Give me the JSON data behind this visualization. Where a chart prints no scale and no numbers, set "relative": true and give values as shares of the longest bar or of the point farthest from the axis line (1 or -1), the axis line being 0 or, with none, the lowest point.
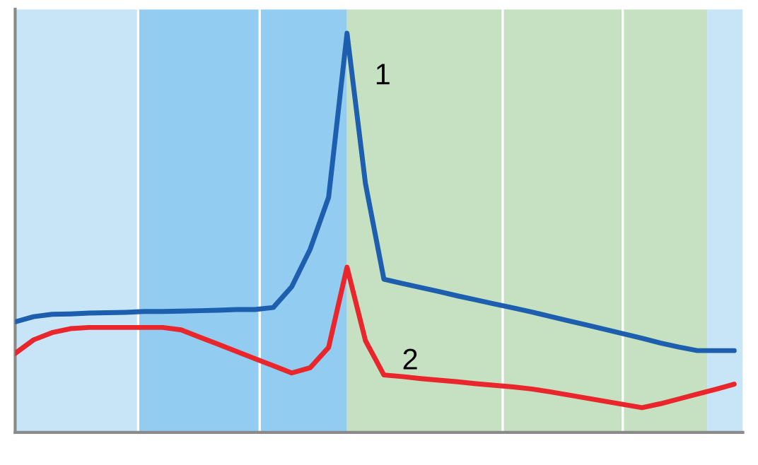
{
  "chart_data": {
    "type": "line",
    "relative": true,
    "categories": [
      null,
      null,
      null,
      null,
      null,
      null,
      null,
      null,
      null,
      null,
      null,
      null,
      null,
      null,
      null,
      null,
      null,
      null,
      null,
      null,
      null,
      null,
      null,
      null,
      null,
      null,
      null,
      null,
      null,
      null,
      null,
      null,
      null,
      null,
      null,
      null,
      null,
      null,
      null,
      null
    ],
    "series": [
      {
        "name": "1",
        "color": "#1d5fae",
        "values": [
          0.277,
          0.29,
          0.296,
          0.297,
          0.299,
          0.3,
          0.301,
          0.303,
          0.303,
          0.304,
          0.305,
          0.306,
          0.308,
          0.308,
          0.313,
          0.365,
          0.459,
          0.589,
          1,
          0.623,
          0.384,
          0.373,
          0.363,
          0.353,
          0.342,
          0.332,
          0.322,
          0.312,
          0.302,
          0.291,
          0.28,
          0.269,
          0.258,
          0.247,
          0.236,
          0.224,
          0.214,
          0.205,
          0.205,
          0.205
        ]
      },
      {
        "name": "2",
        "color": "#e8262c",
        "values": [
          0.198,
          0.232,
          0.25,
          0.26,
          0.263,
          0.263,
          0.263,
          0.263,
          0.263,
          0.257,
          0.239,
          0.221,
          0.203,
          0.185,
          0.167,
          0.149,
          0.162,
          0.213,
          0.414,
          0.23,
          0.144,
          0.14,
          0.135,
          0.131,
          0.127,
          0.122,
          0.118,
          0.114,
          0.109,
          0.102,
          0.094,
          0.086,
          0.078,
          0.07,
          0.062,
          0.072,
          0.084,
          0.096,
          0.108,
          0.121
        ]
      }
    ]
  }
}
